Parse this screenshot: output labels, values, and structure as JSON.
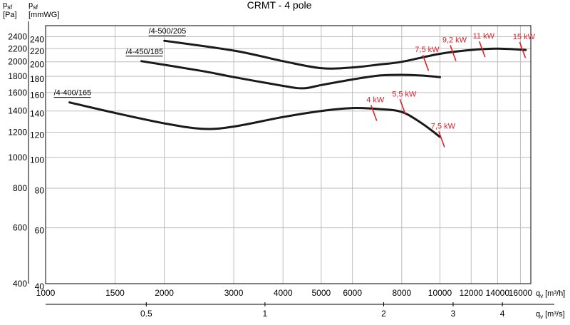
{
  "chart_data": {
    "type": "line",
    "title": "CRMT - 4 pole",
    "y_left_labels": {
      "symbol": "p",
      "sub": "sf",
      "unit": "[Pa]"
    },
    "y_inner_labels": {
      "symbol": "p",
      "sub": "sf",
      "unit": "[mmWG]"
    },
    "x_label_top": {
      "symbol": "q",
      "sub": "v",
      "unit": "[m³/h]"
    },
    "x_label_bottom": {
      "symbol": "q",
      "sub": "v",
      "unit": "[m³/s]"
    },
    "x_scale": "log",
    "y_scale": "log",
    "xlim": [
      1000,
      17000
    ],
    "ylim": [
      400,
      2600
    ],
    "grid": true,
    "x_ticks_m3h": [
      {
        "value": 1000,
        "label": "1000"
      },
      {
        "value": 1500,
        "label": "1500"
      },
      {
        "value": 2000,
        "label": "2000"
      },
      {
        "value": 3000,
        "label": "3000"
      },
      {
        "value": 4000,
        "label": "4000"
      },
      {
        "value": 5000,
        "label": "5000"
      },
      {
        "value": 6000,
        "label": "6000"
      },
      {
        "value": 8000,
        "label": "8000"
      },
      {
        "value": 10000,
        "label": "10000"
      },
      {
        "value": 12000,
        "label": "12000"
      },
      {
        "value": 14000,
        "label": "14000"
      },
      {
        "value": 16000,
        "label": "16000"
      }
    ],
    "x_ticks_m3s": [
      {
        "value": 0.5,
        "label": "0.5"
      },
      {
        "value": 1,
        "label": "1"
      },
      {
        "value": 2,
        "label": "2"
      },
      {
        "value": 3,
        "label": "3"
      },
      {
        "value": 4,
        "label": "4"
      }
    ],
    "y_ticks_pa": [
      {
        "value": 400,
        "label": "400"
      },
      {
        "value": 600,
        "label": "600"
      },
      {
        "value": 800,
        "label": "800"
      },
      {
        "value": 1000,
        "label": "1000"
      },
      {
        "value": 1200,
        "label": "1200"
      },
      {
        "value": 1400,
        "label": "1400"
      },
      {
        "value": 1600,
        "label": "1600"
      },
      {
        "value": 1800,
        "label": "1800"
      },
      {
        "value": 2000,
        "label": "2000"
      },
      {
        "value": 2200,
        "label": "2200"
      },
      {
        "value": 2400,
        "label": "2400"
      }
    ],
    "y_ticks_mmwg": [
      {
        "value": 40,
        "label": "40"
      },
      {
        "value": 60,
        "label": "60"
      },
      {
        "value": 80,
        "label": "80"
      },
      {
        "value": 100,
        "label": "100"
      },
      {
        "value": 120,
        "label": "120"
      },
      {
        "value": 140,
        "label": "140"
      },
      {
        "value": 160,
        "label": "160"
      },
      {
        "value": 180,
        "label": "180"
      },
      {
        "value": 200,
        "label": "200"
      },
      {
        "value": 220,
        "label": "220"
      },
      {
        "value": 240,
        "label": "240"
      }
    ],
    "series": [
      {
        "name": "/4-500/205",
        "x": [
          2000,
          3000,
          4000,
          5000,
          6000,
          7000,
          8000,
          10000,
          12000,
          14000,
          16500
        ],
        "y": [
          2330,
          2170,
          2010,
          1910,
          1920,
          1960,
          2000,
          2120,
          2180,
          2200,
          2180
        ]
      },
      {
        "name": "/4-450/185",
        "x": [
          1750,
          2500,
          3000,
          4000,
          4500,
          5000,
          6000,
          7000,
          8000,
          9000,
          10000
        ],
        "y": [
          2010,
          1870,
          1790,
          1680,
          1650,
          1690,
          1760,
          1810,
          1820,
          1810,
          1790
        ]
      },
      {
        "name": "/4-400/165",
        "x": [
          1150,
          1500,
          2000,
          2500,
          3000,
          4000,
          5000,
          6000,
          7000,
          8000,
          9000,
          10000
        ],
        "y": [
          1490,
          1380,
          1280,
          1230,
          1250,
          1340,
          1400,
          1430,
          1420,
          1390,
          1280,
          1160
        ]
      }
    ],
    "power_marks": [
      {
        "label": "4 kW",
        "x": 6800,
        "y": 1380
      },
      {
        "label": "5,5 kW",
        "x": 8050,
        "y": 1440
      },
      {
        "label": "7,5 kW",
        "x": 10100,
        "y": 1140
      },
      {
        "label": "7,5 kW",
        "x": 9200,
        "y": 1985
      },
      {
        "label": "9,2 kW",
        "x": 10800,
        "y": 2130
      },
      {
        "label": "11 kW",
        "x": 12800,
        "y": 2190
      },
      {
        "label": "15 kW",
        "x": 16200,
        "y": 2180
      }
    ]
  }
}
